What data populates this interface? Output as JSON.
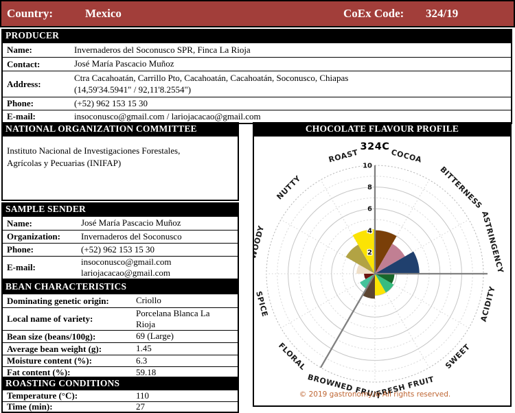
{
  "header": {
    "country_label": "Country:",
    "country_value": "Mexico",
    "coex_label": "CoEx Code:",
    "coex_value": "324/19"
  },
  "sections": {
    "producer": {
      "title": "PRODUCER",
      "rows": [
        {
          "label": "Name:",
          "value": "Invernaderos del Soconusco SPR, Finca La Rioja"
        },
        {
          "label": "Contact:",
          "value": "José María Pascacio Muñoz"
        },
        {
          "label": "Address:",
          "value": "Ctra Cacahoatán, Carrillo Pto, Cacahoatán, Cacahoatán, Soconusco, Chiapas\n(14,59'34.5941\" / 92,11'8.2554\")"
        },
        {
          "label": "Phone:",
          "value": "(+52) 962 153 15 30"
        },
        {
          "label": "E-mail:",
          "value": "insoconusco@gmail.com / lariojacacao@gmail.com"
        }
      ]
    },
    "committee": {
      "title": "NATIONAL ORGANIZATION COMMITTEE",
      "text": "Instituto Nacional de Investigaciones Forestales,\nAgrícolas y Pecuarias (INIFAP)"
    },
    "sample_sender": {
      "title": "SAMPLE SENDER",
      "rows": [
        {
          "label": "Name:",
          "value": "José María Pascacio Muñoz"
        },
        {
          "label": "Organization:",
          "value": "Invernaderos del Soconusco"
        },
        {
          "label": "Phone:",
          "value": "(+52) 962 153 15 30"
        },
        {
          "label": "E-mail:",
          "value": "insoconusco@gmail.com\nlariojacacao@gmail.com"
        }
      ]
    },
    "bean": {
      "title": "BEAN CHARACTERISTICS",
      "rows": [
        {
          "label": "Dominating genetic origin:",
          "value": "Criollo"
        },
        {
          "label": "Local name of variety:",
          "value": "Porcelana Blanca La\nRioja"
        },
        {
          "label": "Bean size (beans/100g):",
          "value": "69 (Large)"
        },
        {
          "label": "Average bean weight (g):",
          "value": "1.45"
        },
        {
          "label": "Moisture content (%):",
          "value": "6.3"
        },
        {
          "label": "Fat content (%):",
          "value": "59.18"
        }
      ]
    },
    "roasting": {
      "title": "ROASTING CONDITIONS",
      "rows": [
        {
          "label": "Temperature (°C):",
          "value": "110"
        },
        {
          "label": "Time (min):",
          "value": "27"
        }
      ]
    },
    "flavour": {
      "title": "CHOCOLATE FLAVOUR PROFILE"
    }
  },
  "chart_data": {
    "type": "polar-rose",
    "title": "324C",
    "footer": "© 2019 gastronomy.io All rights reserved.",
    "categories": [
      "COCOA",
      "BITTERNESS",
      "ASTRINGENCY",
      "ACIDITY",
      "SWEET",
      "FRESH FRUIT",
      "BROWNED FRUIT",
      "FLORAL",
      "SPICE",
      "WOODY",
      "NUTTY",
      "ROAST"
    ],
    "values": [
      4.0,
      3.2,
      4.1,
      1.8,
      2.0,
      2.0,
      2.3,
      1.6,
      1.0,
      1.7,
      3.1,
      4.1
    ],
    "colors": [
      "#7A3F08",
      "#C17F93",
      "#20406E",
      "#17672A",
      "#38BC7F",
      "#FBE304",
      "#5C4531",
      "#45C39B",
      "#6E1410",
      "#EFDFC8",
      "#B2A344",
      "#FBE304"
    ],
    "sector_angle_deg": 30,
    "start_angle_deg": 0,
    "rmax": 10,
    "ring_step": 1,
    "tick_values": [
      2,
      4,
      6,
      8,
      10
    ],
    "thick_spoke_angles": [
      0,
      90,
      210
    ],
    "grid_color": "#c6c6c6",
    "spoke_color": "#808080"
  }
}
